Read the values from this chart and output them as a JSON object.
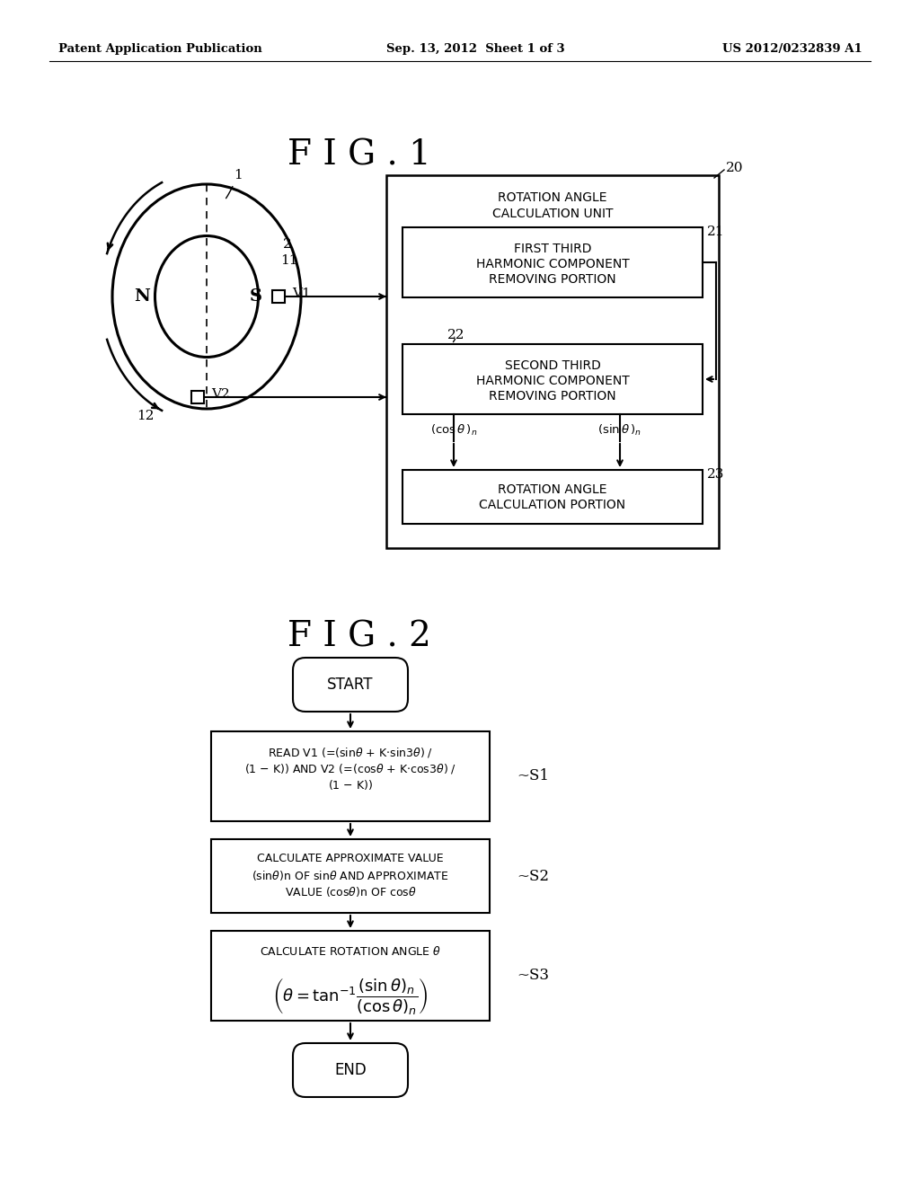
{
  "bg_color": "#ffffff",
  "header_left": "Patent Application Publication",
  "header_center": "Sep. 13, 2012  Sheet 1 of 3",
  "header_right": "US 2012/0232839 A1"
}
